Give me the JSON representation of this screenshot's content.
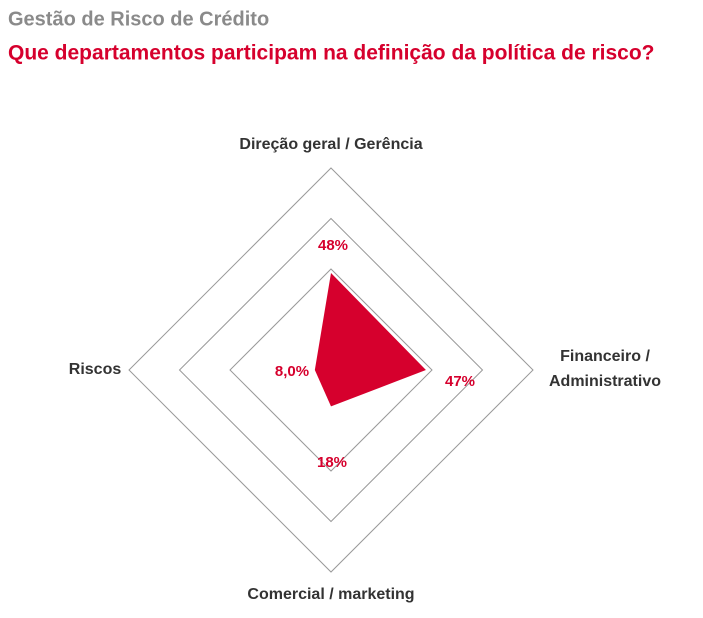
{
  "chart_data": {
    "type": "radar",
    "title": "Gestão de Risco de Crédito",
    "subtitle": "Que departamentos participam na definição da política de risco?",
    "categories": [
      "Direção geral / Gerência",
      "Financeiro / Administrativo",
      "Comercial / marketing",
      "Riscos"
    ],
    "values": [
      48,
      47,
      18,
      8
    ],
    "value_labels": [
      "48%",
      "47%",
      "18%",
      "8,0%"
    ],
    "color": "#d6002d",
    "rlim": [
      0,
      100
    ],
    "rticks": [
      50,
      75,
      100
    ],
    "grid": true
  }
}
